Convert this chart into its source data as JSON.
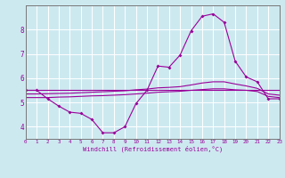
{
  "xlabel": "Windchill (Refroidissement éolien,°C)",
  "xlim": [
    0,
    23
  ],
  "ylim": [
    3.5,
    9.0
  ],
  "yticks": [
    4,
    5,
    6,
    7,
    8
  ],
  "xticks": [
    0,
    1,
    2,
    3,
    4,
    5,
    6,
    7,
    8,
    9,
    10,
    11,
    12,
    13,
    14,
    15,
    16,
    17,
    18,
    19,
    20,
    21,
    22,
    23
  ],
  "bg_color": "#cde9f0",
  "grid_color": "#ffffff",
  "line_color": "#990099",
  "line1_x": [
    0,
    1,
    2,
    3,
    4,
    5,
    6,
    7,
    8,
    9,
    10,
    11,
    12,
    13,
    14,
    15,
    16,
    17,
    18,
    19,
    20,
    21,
    22,
    23
  ],
  "line1_y": [
    5.5,
    5.5,
    5.15,
    4.85,
    4.6,
    4.55,
    4.3,
    3.75,
    3.75,
    4.0,
    4.95,
    5.5,
    6.5,
    6.45,
    6.95,
    7.95,
    8.55,
    8.65,
    8.3,
    6.7,
    6.05,
    5.85,
    5.15,
    5.15
  ],
  "line2_x": [
    0,
    1,
    2,
    3,
    4,
    5,
    6,
    7,
    8,
    9,
    10,
    11,
    12,
    13,
    14,
    15,
    16,
    17,
    18,
    19,
    20,
    21,
    22,
    23
  ],
  "line2_y": [
    5.5,
    5.5,
    5.5,
    5.5,
    5.5,
    5.5,
    5.5,
    5.5,
    5.5,
    5.5,
    5.5,
    5.5,
    5.5,
    5.5,
    5.5,
    5.5,
    5.5,
    5.5,
    5.5,
    5.5,
    5.5,
    5.5,
    5.5,
    5.5
  ],
  "line3_x": [
    0,
    1,
    2,
    3,
    4,
    5,
    6,
    7,
    8,
    9,
    10,
    11,
    12,
    13,
    14,
    15,
    16,
    17,
    18,
    19,
    20,
    21,
    22,
    23
  ],
  "line3_y": [
    5.2,
    5.2,
    5.2,
    5.22,
    5.23,
    5.25,
    5.27,
    5.28,
    5.3,
    5.32,
    5.35,
    5.38,
    5.42,
    5.44,
    5.46,
    5.5,
    5.53,
    5.56,
    5.56,
    5.52,
    5.5,
    5.45,
    5.25,
    5.2
  ],
  "line4_x": [
    0,
    1,
    2,
    3,
    4,
    5,
    6,
    7,
    8,
    9,
    10,
    11,
    12,
    13,
    14,
    15,
    16,
    17,
    18,
    19,
    20,
    21,
    22,
    23
  ],
  "line4_y": [
    5.35,
    5.35,
    5.36,
    5.37,
    5.38,
    5.4,
    5.42,
    5.44,
    5.46,
    5.48,
    5.52,
    5.55,
    5.6,
    5.62,
    5.65,
    5.72,
    5.8,
    5.85,
    5.85,
    5.76,
    5.68,
    5.58,
    5.35,
    5.3
  ]
}
